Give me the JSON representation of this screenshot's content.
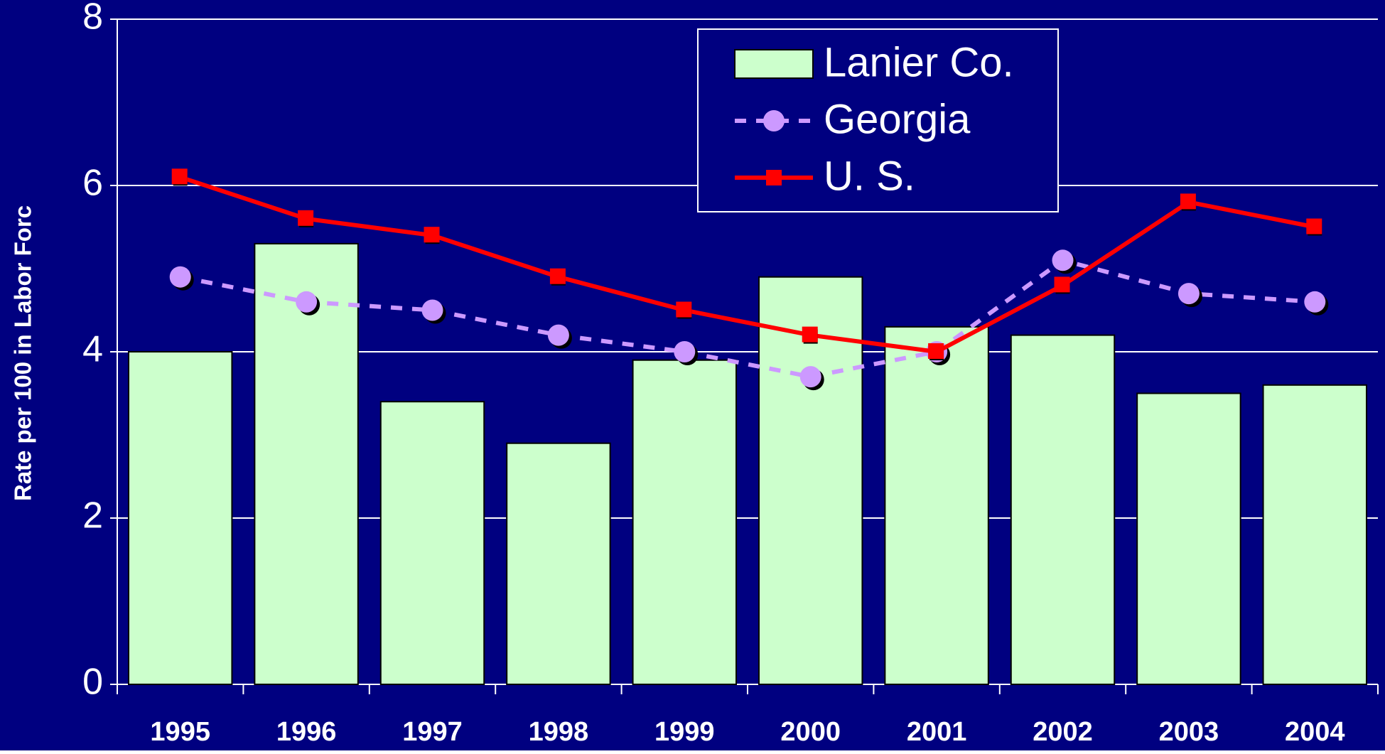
{
  "chart_data": {
    "type": "bar",
    "y_label": "Rate per 100 in Labor Forc",
    "categories": [
      "1995",
      "1996",
      "1997",
      "1998",
      "1999",
      "2000",
      "2001",
      "2002",
      "2003",
      "2004"
    ],
    "series": [
      {
        "name": "Lanier Co.",
        "type": "bar",
        "color": "#ccffcc",
        "values": [
          4.0,
          5.3,
          3.4,
          2.9,
          3.9,
          4.9,
          4.3,
          4.2,
          3.5,
          3.6
        ]
      },
      {
        "name": "Georgia",
        "type": "line",
        "color": "#cc99ff",
        "dashed": true,
        "marker": "circle",
        "values": [
          4.9,
          4.6,
          4.5,
          4.2,
          4.0,
          3.7,
          4.0,
          5.1,
          4.7,
          4.6
        ]
      },
      {
        "name": "U. S.",
        "type": "line",
        "color": "#ff0000",
        "dashed": false,
        "marker": "square",
        "values": [
          6.1,
          5.6,
          5.4,
          4.9,
          4.5,
          4.2,
          4.0,
          4.8,
          5.8,
          5.5
        ]
      }
    ],
    "ylim": [
      0,
      8
    ],
    "yticks": [
      0,
      2,
      4,
      6,
      8
    ],
    "grid": true,
    "legend": "top-right",
    "background": "#000080"
  }
}
